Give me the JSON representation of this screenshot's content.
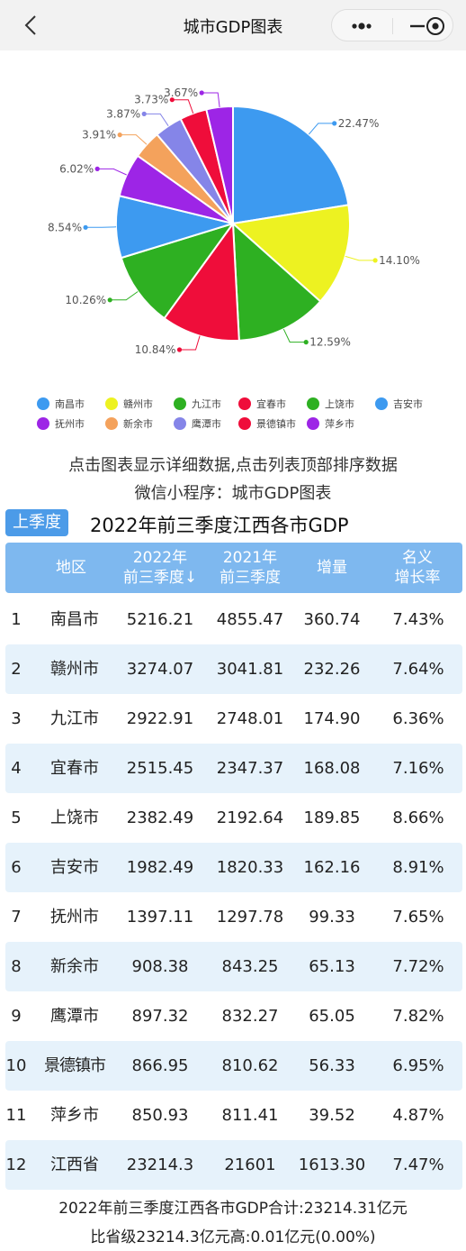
{
  "header": {
    "title": "城市GDP图表",
    "back_icon": "back-chevron-icon",
    "capsule_icons": [
      "more-dots-icon",
      "minimize-icon",
      "close-target-icon"
    ]
  },
  "chart_data": {
    "type": "pie",
    "labels": [
      "南昌市",
      "赣州市",
      "九江市",
      "宜春市",
      "上饶市",
      "吉安市",
      "抚州市",
      "新余市",
      "鹰潭市",
      "景德镇市",
      "萍乡市"
    ],
    "values": [
      5216.21,
      3274.07,
      2922.91,
      2515.45,
      2382.49,
      1982.49,
      1397.11,
      908.38,
      897.32,
      866.95,
      850.93
    ],
    "percents": [
      "22.47%",
      "14.10%",
      "12.59%",
      "10.84%",
      "10.26%",
      "8.54%",
      "6.02%",
      "3.91%",
      "3.87%",
      "3.73%",
      "3.67%"
    ],
    "colors": [
      "#3d9af0",
      "#edf221",
      "#2eb022",
      "#ef0d3a",
      "#2eb022",
      "#3d9af0",
      "#9d25e6",
      "#f4a25c",
      "#8585e8",
      "#ef0d3a",
      "#9d25e6"
    ],
    "legend_position": "bottom"
  },
  "hints": {
    "line1": "点击图表显示详细数据,点击列表顶部排序数据",
    "line2": "微信小程序：城市GDP图表"
  },
  "season_button": "上季度",
  "table": {
    "title": "2022年前三季度江西各市GDP",
    "headers": {
      "region": "地区",
      "y2022_line1": "2022年",
      "y2022_line2": "前三季度",
      "sort_arrow": "↓",
      "y2021_line1": "2021年",
      "y2021_line2": "前三季度",
      "increase": "增量",
      "rate_line1": "名义",
      "rate_line2": "增长率"
    },
    "rows": [
      {
        "rank": "1",
        "city": "南昌市",
        "v2022": "5216.21",
        "v2021": "4855.47",
        "inc": "360.74",
        "rate": "7.43%"
      },
      {
        "rank": "2",
        "city": "赣州市",
        "v2022": "3274.07",
        "v2021": "3041.81",
        "inc": "232.26",
        "rate": "7.64%"
      },
      {
        "rank": "3",
        "city": "九江市",
        "v2022": "2922.91",
        "v2021": "2748.01",
        "inc": "174.90",
        "rate": "6.36%"
      },
      {
        "rank": "4",
        "city": "宜春市",
        "v2022": "2515.45",
        "v2021": "2347.37",
        "inc": "168.08",
        "rate": "7.16%"
      },
      {
        "rank": "5",
        "city": "上饶市",
        "v2022": "2382.49",
        "v2021": "2192.64",
        "inc": "189.85",
        "rate": "8.66%"
      },
      {
        "rank": "6",
        "city": "吉安市",
        "v2022": "1982.49",
        "v2021": "1820.33",
        "inc": "162.16",
        "rate": "8.91%"
      },
      {
        "rank": "7",
        "city": "抚州市",
        "v2022": "1397.11",
        "v2021": "1297.78",
        "inc": "99.33",
        "rate": "7.65%"
      },
      {
        "rank": "8",
        "city": "新余市",
        "v2022": "908.38",
        "v2021": "843.25",
        "inc": "65.13",
        "rate": "7.72%"
      },
      {
        "rank": "9",
        "city": "鹰潭市",
        "v2022": "897.32",
        "v2021": "832.27",
        "inc": "65.05",
        "rate": "7.82%"
      },
      {
        "rank": "10",
        "city": "景德镇市",
        "v2022": "866.95",
        "v2021": "810.62",
        "inc": "56.33",
        "rate": "6.95%"
      },
      {
        "rank": "11",
        "city": "萍乡市",
        "v2022": "850.93",
        "v2021": "811.41",
        "inc": "39.52",
        "rate": "4.87%"
      },
      {
        "rank": "12",
        "city": "江西省",
        "v2022": "23214.3",
        "v2021": "21601",
        "inc": "1613.30",
        "rate": "7.47%"
      }
    ]
  },
  "footer": {
    "line1": "2022年前三季度江西各市GDP合计:23214.31亿元",
    "line2": "比省级23214.3亿元高:0.01亿元(0.00%)"
  }
}
